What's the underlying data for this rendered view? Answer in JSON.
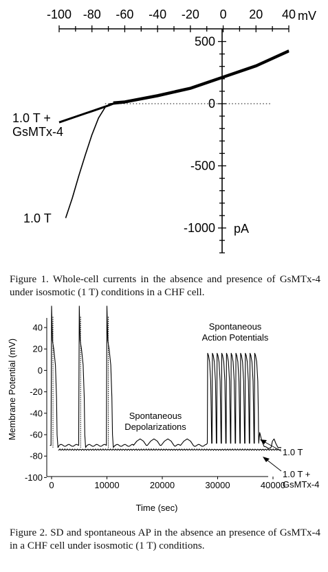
{
  "chart_data": [
    {
      "type": "line",
      "x_unit": "mV",
      "y_unit": "pA",
      "x_ticks": [
        -100,
        -80,
        -60,
        -40,
        -20,
        0,
        20,
        40
      ],
      "y_ticks": [
        500,
        0,
        -500,
        -1000
      ],
      "xlim": [
        -100,
        40
      ],
      "ylim": [
        -1200,
        500
      ],
      "zero_line_dotted": true,
      "series": [
        {
          "name": "1.0 T",
          "x": [
            -96,
            -92,
            -88,
            -84,
            -80,
            -76,
            -72,
            -69,
            -67,
            -60,
            -40,
            -20,
            0,
            20,
            40
          ],
          "y": [
            -920,
            -760,
            -580,
            -410,
            -250,
            -115,
            -30,
            0,
            2,
            10,
            60,
            120,
            210,
            300,
            420
          ]
        },
        {
          "name": "1.0 T + GsMTx-4",
          "x": [
            -100,
            -90,
            -80,
            -70,
            -67,
            -60,
            -40,
            -20,
            0,
            20,
            40
          ],
          "y": [
            -150,
            -105,
            -60,
            -15,
            0,
            10,
            60,
            120,
            210,
            300,
            420
          ]
        }
      ]
    },
    {
      "type": "line",
      "xlabel": "Time (sec)",
      "ylabel": "Membrane Potential (mV)",
      "x_ticks": [
        0,
        10000,
        20000,
        30000,
        40000
      ],
      "y_ticks": [
        40,
        20,
        0,
        -20,
        -40,
        -60,
        -80,
        -100
      ],
      "xlim": [
        0,
        42000
      ],
      "ylim": [
        -100,
        50
      ],
      "series": [
        {
          "name": "1.0 T"
        },
        {
          "name": "1.0 T + GsMTx-4"
        }
      ],
      "annotations": [
        {
          "text": "Spontaneous Depolarizations",
          "at": [
            20000,
            -55
          ]
        },
        {
          "text": "Spontaneous Action Potentials",
          "at": [
            32500,
            45
          ]
        }
      ],
      "baseline_mv": -70,
      "treated_baseline_mv": -74,
      "action_potential_times": [
        0,
        5000,
        10000
      ],
      "depolarization_times": [
        16000,
        18500,
        21000,
        24500
      ],
      "spontaneous_ap_times": [
        28200,
        29050,
        29900,
        30750,
        31600,
        32450,
        33300,
        34150,
        35000,
        35850,
        36700
      ],
      "late_bump_time": 40200
    }
  ],
  "fig1": {
    "unit_x": "mV",
    "unit_y": "pA",
    "label_control": "1.0 T",
    "label_treated_line1": "1.0 T +",
    "label_treated_line2": "GsMTx-4"
  },
  "fig2": {
    "annotation_dep_line1": "Spontaneous",
    "annotation_dep_line2": "Depolarizations",
    "annotation_ap_line1": "Spontaneous",
    "annotation_ap_line2": "Action Potentials",
    "label_control": "1.0 T",
    "label_treated_line1": "1.0 T +",
    "label_treated_line2": "GsMTx-4"
  },
  "captions": {
    "figure1": "Figure 1. Whole-cell currents in the absence and presence of GsMTx-4 under isosmotic (1 T) conditions in a CHF cell.",
    "figure2": "Figure 2. SD and spontaneous AP in the absence an presence of GsMTx-4 in a CHF cell under isosmotic (1 T) conditions."
  }
}
